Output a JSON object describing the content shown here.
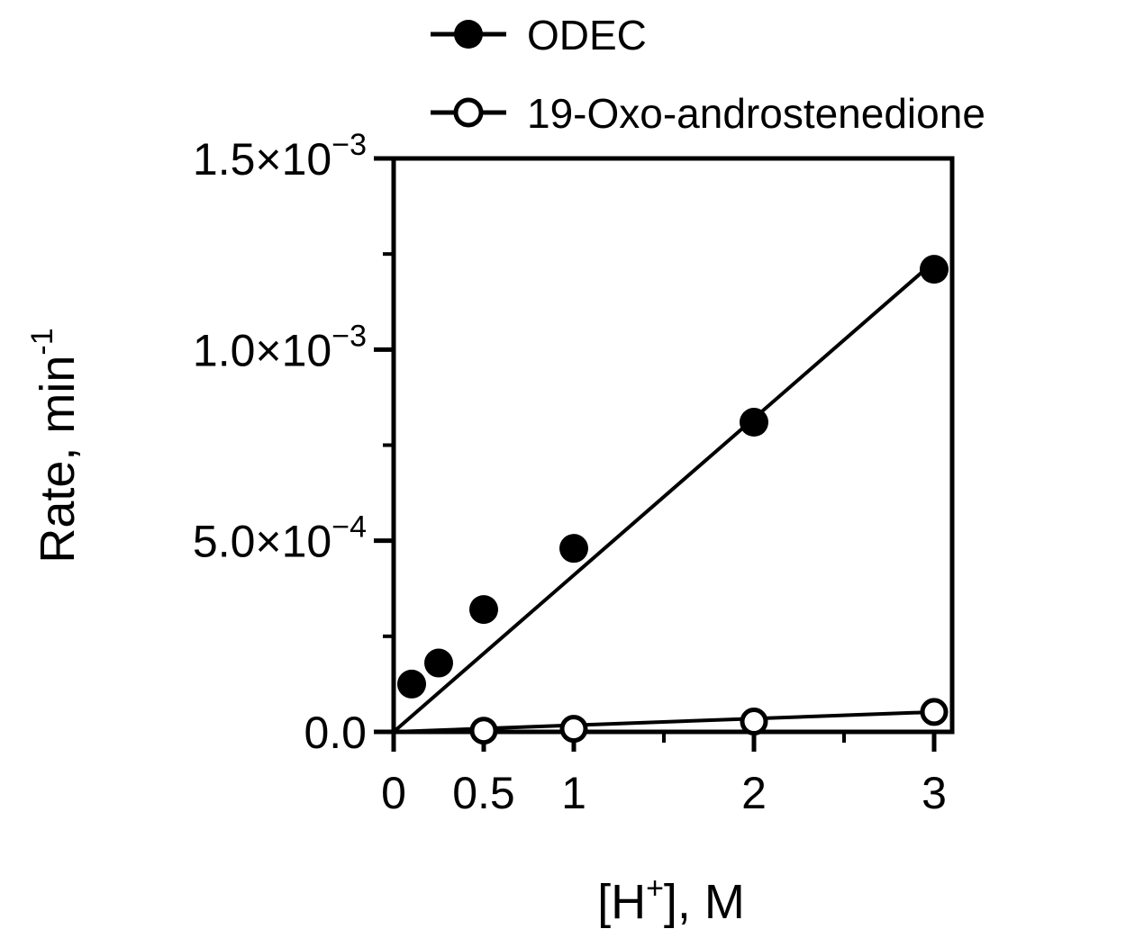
{
  "chart_data": {
    "type": "scatter",
    "xlabel": {
      "pre": "[H",
      "sup": "+",
      "post": "], M"
    },
    "ylabel": {
      "main": "Rate, min",
      "sup": "-1"
    },
    "xlim": [
      0,
      3.1
    ],
    "ylim": [
      0,
      0.0015
    ],
    "x_ticks": [
      {
        "value": 0,
        "label": "0"
      },
      {
        "value": 0.5,
        "label": "0.5"
      },
      {
        "value": 1,
        "label": "1"
      },
      {
        "value": 2,
        "label": "2"
      },
      {
        "value": 3,
        "label": "3"
      }
    ],
    "x_minor_ticks": [
      1.5,
      2.5
    ],
    "y_ticks": [
      {
        "value": 0,
        "mantissa": "0.0",
        "exp": ""
      },
      {
        "value": 0.0005,
        "mantissa": "5.0×10",
        "exp": "−4"
      },
      {
        "value": 0.001,
        "mantissa": "1.0×10",
        "exp": "−3"
      },
      {
        "value": 0.0015,
        "mantissa": "1.5×10",
        "exp": "−3"
      }
    ],
    "y_minor_ticks": [
      0.00025,
      0.00075,
      0.00125
    ],
    "legend_position": "top",
    "grid": false,
    "series": [
      {
        "name": "ODEC",
        "marker": "filled-circle",
        "color": "#000000",
        "x": [
          0.1,
          0.25,
          0.5,
          1,
          2,
          3
        ],
        "y": [
          0.000125,
          0.00018,
          0.00032,
          0.00048,
          0.00081,
          0.00121
        ],
        "fit_line": {
          "x": [
            0,
            3
          ],
          "y": [
            0,
            0.00123
          ]
        }
      },
      {
        "name": "19-Oxo-androstenedione",
        "marker": "open-circle",
        "color": "#000000",
        "x": [
          0.5,
          1,
          2,
          3
        ],
        "y": [
          3e-06,
          8e-06,
          2.7e-05,
          5.2e-05
        ],
        "fit_line": {
          "x": [
            0,
            3
          ],
          "y": [
            0,
            5.2e-05
          ]
        }
      }
    ]
  }
}
